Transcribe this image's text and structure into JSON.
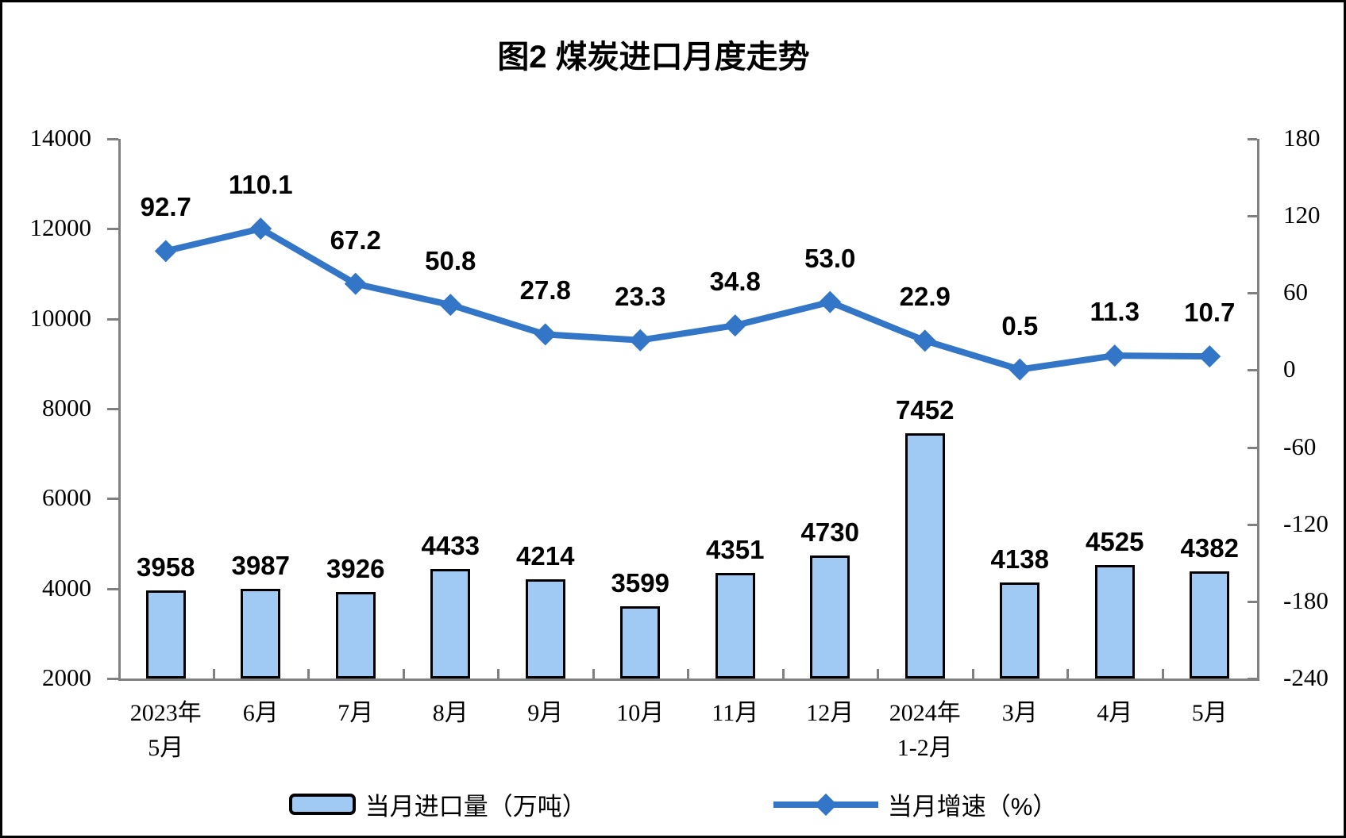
{
  "title": "图2 煤炭进口月度走势",
  "legend": {
    "bar_label": "当月进口量（万吨）",
    "line_label": "当月增速（%）"
  },
  "colors": {
    "background": "#FFFFFF",
    "frame_border": "#000000",
    "bar_fill": "#A0C9F4",
    "bar_border": "#000000",
    "line": "#3376C8",
    "axis": "#808080",
    "text": "#000000"
  },
  "chart_data": {
    "type": "combo (bar + line)",
    "title": "图2 煤炭进口月度走势",
    "categories": [
      [
        "2023年",
        "5月"
      ],
      [
        "6月"
      ],
      [
        "7月"
      ],
      [
        "8月"
      ],
      [
        "9月"
      ],
      [
        "10月"
      ],
      [
        "11月"
      ],
      [
        "12月"
      ],
      [
        "2024年",
        "1-2月"
      ],
      [
        "3月"
      ],
      [
        "4月"
      ],
      [
        "5月"
      ]
    ],
    "series": [
      {
        "name": "当月进口量（万吨）",
        "type": "bar",
        "axis": "left",
        "values": [
          3958,
          3987,
          3926,
          4433,
          4214,
          3599,
          4351,
          4730,
          7452,
          4138,
          4525,
          4382
        ],
        "labels": [
          "3958",
          "3987",
          "3926",
          "4433",
          "4214",
          "3599",
          "4351",
          "4730",
          "7452",
          "4138",
          "4525",
          "4382"
        ]
      },
      {
        "name": "当月增速（%）",
        "type": "line",
        "axis": "right",
        "marker": "diamond",
        "values": [
          92.7,
          110.1,
          67.2,
          50.8,
          27.8,
          23.3,
          34.8,
          53.0,
          22.9,
          0.5,
          11.3,
          10.7
        ],
        "labels": [
          "92.7",
          "110.1",
          "67.2",
          "50.8",
          "27.8",
          "23.3",
          "34.8",
          "53.0",
          "22.9",
          "0.5",
          "11.3",
          "10.7"
        ]
      }
    ],
    "left_axis": {
      "min": 2000,
      "max": 14000,
      "step": 2000,
      "tick_labels": [
        "14000",
        "12000",
        "10000",
        "8000",
        "6000",
        "4000",
        "2000"
      ]
    },
    "right_axis": {
      "min": -240,
      "max": 180,
      "step": 60,
      "tick_labels": [
        "180",
        "120",
        "60",
        "0",
        "-60",
        "-120",
        "-180",
        "-240"
      ]
    },
    "grid": false,
    "data_labels": true,
    "legend_position": "bottom"
  }
}
